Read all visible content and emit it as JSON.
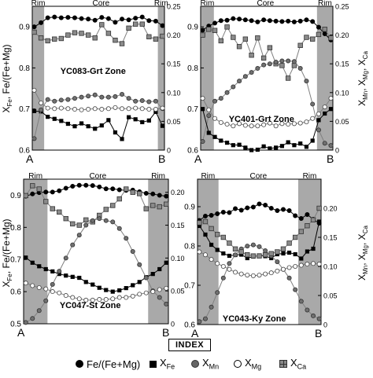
{
  "colors": {
    "shade": "#a9a9a9",
    "fe_mg": "#000000",
    "fe": "#000000",
    "mn": "#707070",
    "mg": "#ffffff",
    "ca": "#8a8a8a",
    "gray_line": "#808080"
  },
  "axes": {
    "left_label": [
      "X",
      "Fe",
      ", Fe/(Fe+Mg)"
    ],
    "right_label": [
      "X",
      "Mn",
      ", X",
      "Mg",
      ", X",
      "Ca"
    ],
    "left_ticks": [
      "0.6",
      "0.7",
      "0.8",
      "0.9"
    ],
    "right_ticks": [
      "0",
      "0.05",
      "0.10",
      "0.15",
      "0.20",
      "0.25"
    ]
  },
  "legend": {
    "title": "INDEX",
    "items": [
      {
        "icon": "filled-circle-icon",
        "label": "Fe/(Fe+Mg)"
      },
      {
        "icon": "filled-square-icon",
        "label": [
          "X",
          "Fe"
        ]
      },
      {
        "icon": "gray-circle-icon",
        "label": [
          "X",
          "Mn"
        ]
      },
      {
        "icon": "open-circle-icon",
        "label": [
          "X",
          "Mg"
        ]
      },
      {
        "icon": "gray-square-icon",
        "label": [
          "X",
          "Ca"
        ]
      }
    ]
  },
  "chart_data": [
    {
      "type": "line",
      "title": "YC083-Grt Zone",
      "end_labels": [
        "A",
        "B"
      ],
      "zones": [
        {
          "label": "Rim",
          "from": 0,
          "to": 0.09
        },
        {
          "label": "Core",
          "from": 0.09,
          "to": 0.95
        },
        {
          "label": "Rim",
          "from": 0.95,
          "to": 1.0
        }
      ],
      "left_ylim": [
        0.6,
        0.95
      ],
      "right_ylim": [
        0,
        0.25
      ],
      "series": [
        {
          "key": "fe_mg",
          "axis": "left",
          "values": [
            0.9,
            0.91,
            0.922,
            0.924,
            0.922,
            0.923,
            0.922,
            0.92,
            0.919,
            0.916,
            0.923,
            0.92,
            0.911,
            0.919,
            0.917,
            0.921,
            0.924,
            0.915,
            0.914,
            0.903
          ]
        },
        {
          "key": "fe",
          "axis": "left",
          "values": [
            0.695,
            0.694,
            0.681,
            0.676,
            0.671,
            0.664,
            0.658,
            0.665,
            0.658,
            0.652,
            0.66,
            0.673,
            0.643,
            0.627,
            0.68,
            0.675,
            0.668,
            0.672,
            0.693,
            0.659
          ]
        },
        {
          "key": "ca",
          "axis": "right",
          "values": [
            0.205,
            0.195,
            0.19,
            0.193,
            0.194,
            0.2,
            0.204,
            0.203,
            0.2,
            0.195,
            0.218,
            0.203,
            0.191,
            0.185,
            0.212,
            0.219,
            0.219,
            0.197,
            0.193,
            0.198
          ]
        },
        {
          "key": "mn",
          "axis": "right",
          "values": [
            0.02,
            0.07,
            0.088,
            0.085,
            0.087,
            0.088,
            0.09,
            0.092,
            0.094,
            0.096,
            0.092,
            0.092,
            0.093,
            0.097,
            0.09,
            0.085,
            0.086,
            0.084,
            0.085,
            0.072
          ]
        },
        {
          "key": "mg",
          "axis": "right",
          "values": [
            0.104,
            0.082,
            0.073,
            0.072,
            0.073,
            0.072,
            0.071,
            0.07,
            0.071,
            0.072,
            0.071,
            0.072,
            0.074,
            0.072,
            0.072,
            0.073,
            0.072,
            0.071,
            0.071,
            0.073
          ]
        }
      ]
    },
    {
      "type": "line",
      "title": "YC401-Grt Zone",
      "end_labels": [
        "A",
        "B"
      ],
      "zones": [
        {
          "label": "Rim",
          "from": 0,
          "to": 0.1
        },
        {
          "label": "Core",
          "from": 0.1,
          "to": 0.88
        },
        {
          "label": "Rim",
          "from": 0.88,
          "to": 1.0
        }
      ],
      "left_ylim": [
        0.6,
        0.95
      ],
      "right_ylim": [
        0,
        0.25
      ],
      "series": [
        {
          "key": "fe_mg",
          "axis": "left",
          "values": [
            0.892,
            0.902,
            0.909,
            0.915,
            0.916,
            0.92,
            0.919,
            0.917,
            0.915,
            0.912,
            0.917,
            0.915,
            0.914,
            0.913,
            0.914,
            0.912,
            0.914,
            0.917,
            0.913,
            0.899,
            0.883,
            0.868
          ]
        },
        {
          "key": "ca",
          "axis": "right",
          "values": [
            0.2,
            0.21,
            0.208,
            0.19,
            0.214,
            0.196,
            0.18,
            0.193,
            0.165,
            0.195,
            0.16,
            0.178,
            0.15,
            0.147,
            0.125,
            0.147,
            0.182,
            0.196,
            0.193,
            0.201,
            0.21,
            0.195
          ]
        },
        {
          "key": "mn",
          "axis": "right",
          "values": [
            0.015,
            0.06,
            0.085,
            0.09,
            0.1,
            0.11,
            0.12,
            0.128,
            0.135,
            0.142,
            0.148,
            0.15,
            0.153,
            0.155,
            0.155,
            0.154,
            0.142,
            0.12,
            0.08,
            0.035,
            0.012,
            0.008
          ]
        },
        {
          "key": "fe",
          "axis": "left",
          "values": [
            0.7,
            0.642,
            0.632,
            0.623,
            0.618,
            0.612,
            0.613,
            0.606,
            0.6,
            0.601,
            0.609,
            0.604,
            0.606,
            0.61,
            0.619,
            0.612,
            0.616,
            0.608,
            0.623,
            0.673,
            0.689,
            0.7
          ]
        },
        {
          "key": "mg",
          "axis": "right",
          "values": [
            0.09,
            0.07,
            0.055,
            0.048,
            0.045,
            0.042,
            0.046,
            0.043,
            0.042,
            0.042,
            0.044,
            0.047,
            0.042,
            0.046,
            0.045,
            0.046,
            0.047,
            0.049,
            0.055,
            0.063,
            0.075,
            0.09
          ]
        }
      ]
    },
    {
      "type": "line",
      "title": "YC047-St Zone",
      "end_labels": [
        "A",
        "B"
      ],
      "zones": [
        {
          "label": "Rim",
          "from": 0,
          "to": 0.165
        },
        {
          "label": "Core",
          "from": 0.165,
          "to": 0.86
        },
        {
          "label": "Rim",
          "from": 0.86,
          "to": 1.0
        }
      ],
      "left_ylim": [
        0.5,
        0.95
      ],
      "right_ylim": [
        0,
        0.22
      ],
      "series": [
        {
          "key": "fe_mg",
          "axis": "left",
          "values": [
            0.897,
            0.904,
            0.908,
            0.91,
            0.91,
            0.914,
            0.922,
            0.928,
            0.931,
            0.931,
            0.93,
            0.926,
            0.92,
            0.92,
            0.917,
            0.915,
            0.916,
            0.911,
            0.906,
            0.904,
            0.9,
            0.897
          ]
        },
        {
          "key": "ca",
          "axis": "right",
          "values": [
            0.195,
            0.21,
            0.205,
            0.186,
            0.175,
            0.17,
            0.16,
            0.152,
            0.15,
            0.158,
            0.155,
            0.165,
            0.174,
            0.18,
            0.19,
            0.205,
            0.2,
            0.198,
            0.175,
            0.18,
            0.178,
            0.182
          ]
        },
        {
          "key": "fe",
          "axis": "left",
          "values": [
            0.706,
            0.69,
            0.679,
            0.67,
            0.663,
            0.655,
            0.65,
            0.646,
            0.643,
            0.63,
            0.622,
            0.612,
            0.605,
            0.6,
            0.604,
            0.611,
            0.62,
            0.63,
            0.645,
            0.655,
            0.67,
            0.69
          ]
        },
        {
          "key": "mn",
          "axis": "right",
          "values": [
            0.002,
            0.008,
            0.02,
            0.035,
            0.06,
            0.08,
            0.1,
            0.12,
            0.135,
            0.15,
            0.157,
            0.16,
            0.157,
            0.155,
            0.145,
            0.13,
            0.11,
            0.09,
            0.07,
            0.05,
            0.04,
            0.03
          ]
        },
        {
          "key": "mg",
          "axis": "right",
          "values": [
            0.062,
            0.058,
            0.055,
            0.053,
            0.049,
            0.047,
            0.043,
            0.04,
            0.038,
            0.036,
            0.036,
            0.037,
            0.037,
            0.038,
            0.04,
            0.04,
            0.042,
            0.045,
            0.047,
            0.049,
            0.052,
            0.054
          ]
        }
      ]
    },
    {
      "type": "line",
      "title": "YC043-Ky Zone",
      "end_labels": [
        "A",
        "B"
      ],
      "zones": [
        {
          "label": "Rim",
          "from": 0,
          "to": 0.17
        },
        {
          "label": "Core",
          "from": 0.17,
          "to": 0.815
        },
        {
          "label": "Rim",
          "from": 0.815,
          "to": 1.0
        }
      ],
      "left_ylim": [
        0.6,
        0.97
      ],
      "right_ylim": [
        0,
        0.25
      ],
      "series": [
        {
          "key": "fe_mg",
          "axis": "left",
          "values": [
            0.865,
            0.876,
            0.878,
            0.882,
            0.886,
            0.885,
            0.895,
            0.891,
            0.897,
            0.899,
            0.907,
            0.904,
            0.896,
            0.89,
            0.893,
            0.89,
            0.877,
            0.87,
            0.88,
            0.868,
            0.858
          ]
        },
        {
          "key": "fe",
          "axis": "left",
          "values": [
            0.851,
            0.829,
            0.803,
            0.79,
            0.781,
            0.775,
            0.777,
            0.778,
            0.769,
            0.773,
            0.776,
            0.774,
            0.769,
            0.779,
            0.781,
            0.783,
            0.779,
            0.768,
            0.786,
            0.793,
            0.862
          ]
        },
        {
          "key": "mn",
          "axis": "right",
          "values": [
            0.005,
            0.01,
            0.03,
            0.055,
            0.08,
            0.105,
            0.12,
            0.13,
            0.135,
            0.137,
            0.134,
            0.127,
            0.118,
            0.108,
            0.095,
            0.08,
            0.06,
            0.04,
            0.025,
            0.015,
            0.01
          ]
        },
        {
          "key": "ca",
          "axis": "right",
          "values": [
            0.175,
            0.177,
            0.165,
            0.155,
            0.15,
            0.14,
            0.13,
            0.125,
            0.12,
            0.118,
            0.118,
            0.12,
            0.122,
            0.125,
            0.13,
            0.14,
            0.15,
            0.16,
            0.17,
            0.18,
            0.2
          ]
        },
        {
          "key": "mg",
          "axis": "right",
          "values": [
            0.125,
            0.12,
            0.112,
            0.105,
            0.1,
            0.095,
            0.09,
            0.087,
            0.085,
            0.084,
            0.085,
            0.087,
            0.089,
            0.092,
            0.095,
            0.098,
            0.1,
            0.102,
            0.104,
            0.105,
            0.104
          ]
        }
      ]
    }
  ]
}
